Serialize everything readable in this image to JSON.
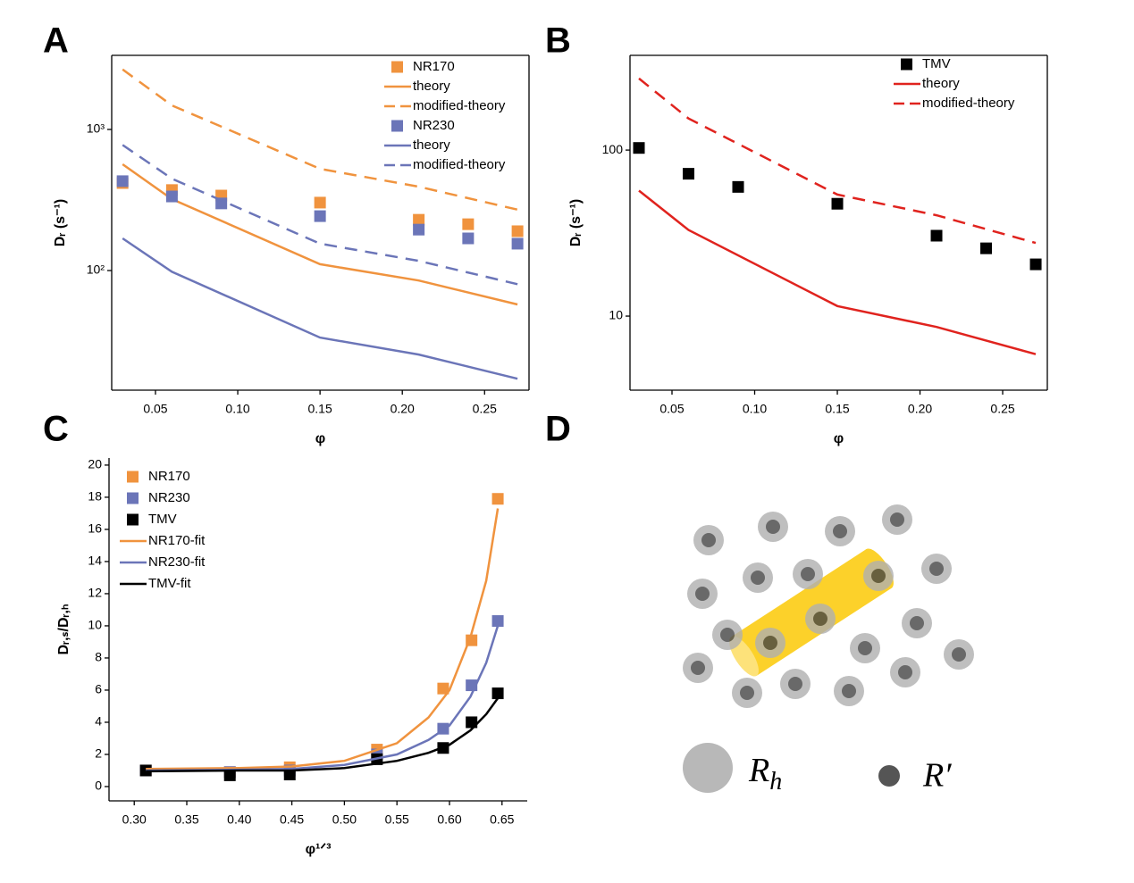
{
  "chart_data": [
    {
      "panel": "A",
      "type": "line",
      "xlabel": "φ",
      "ylabel": "Dᵣ (s⁻¹)",
      "log_y": true,
      "xlim": [
        0.0234,
        0.277
      ],
      "ylim": [
        14.2,
        3350
      ],
      "xticks": [
        0.05,
        {
          "value": 0.1,
          "label": "0.10"
        },
        0.15,
        {
          "value": 0.2,
          "label": "0.20"
        },
        0.25
      ],
      "yticks": [
        {
          "value": 100,
          "label": "10²"
        },
        {
          "value": 1000,
          "label": "10³"
        }
      ],
      "legend": "upper right",
      "series": [
        {
          "name": "NR170",
          "color": "#f0933e",
          "style": "marker",
          "x": [
            0.03,
            0.06,
            0.09,
            0.15,
            0.21,
            0.24,
            0.27
          ],
          "values": [
            417,
            372,
            340,
            303,
            229,
            213,
            190
          ]
        },
        {
          "name": "theory",
          "color": "#f0933e",
          "style": "solid",
          "x": [
            0.03,
            0.06,
            0.15,
            0.21,
            0.27
          ],
          "values": [
            566,
            321,
            111,
            85,
            57.5
          ]
        },
        {
          "name": "modified-theory",
          "color": "#f0933e",
          "style": "dashed",
          "x": [
            0.03,
            0.06,
            0.15,
            0.21,
            0.27
          ],
          "values": [
            2660,
            1480,
            526,
            393,
            270
          ]
        },
        {
          "name": "NR230",
          "color": "#6b75b8",
          "style": "marker",
          "x": [
            0.03,
            0.06,
            0.09,
            0.15,
            0.21,
            0.24,
            0.27
          ],
          "values": [
            430,
            335,
            299,
            243,
            195,
            169,
            155
          ]
        },
        {
          "name": "theory",
          "color": "#6b75b8",
          "style": "solid",
          "x": [
            0.03,
            0.06,
            0.15,
            0.21,
            0.27
          ],
          "values": [
            169,
            98,
            33.5,
            25.4,
            17.1
          ]
        },
        {
          "name": "modified-theory",
          "color": "#6b75b8",
          "style": "dashed",
          "x": [
            0.03,
            0.06,
            0.15,
            0.21,
            0.27
          ],
          "values": [
            776,
            448,
            155,
            117,
            80
          ]
        }
      ]
    },
    {
      "panel": "B",
      "type": "line",
      "xlabel": "φ",
      "ylabel": "Dᵣ (s⁻¹)",
      "log_y": true,
      "xlim": [
        0.0246,
        0.277
      ],
      "ylim": [
        3.58,
        372
      ],
      "xticks": [
        0.05,
        {
          "value": 0.1,
          "label": "0.10"
        },
        0.15,
        {
          "value": 0.2,
          "label": "0.20"
        },
        0.25
      ],
      "yticks": [
        10,
        100
      ],
      "legend": "upper right",
      "series": [
        {
          "name": "TMV",
          "color": "#000000",
          "style": "marker",
          "x": [
            0.03,
            0.06,
            0.09,
            0.15,
            0.21,
            0.24,
            0.27
          ],
          "values": [
            103,
            72,
            60,
            47.5,
            30.5,
            25.6,
            20.5
          ]
        },
        {
          "name": "theory",
          "color": "#e0231e",
          "style": "solid",
          "x": [
            0.03,
            0.06,
            0.15,
            0.21,
            0.27
          ],
          "values": [
            57,
            33,
            11.5,
            8.6,
            5.9
          ]
        },
        {
          "name": "modified-theory",
          "color": "#e0231e",
          "style": "dashed",
          "x": [
            0.03,
            0.06,
            0.15,
            0.21,
            0.27
          ],
          "values": [
            270,
            155,
            54,
            40.5,
            27.6
          ]
        }
      ]
    },
    {
      "panel": "C",
      "type": "line",
      "xlabel": "φ¹ᐟ³",
      "ylabel": "Dᵣ,ₛ/Dᵣ,ₕ",
      "log_y": false,
      "xlim": [
        0.276,
        0.674
      ],
      "ylim": [
        -0.89,
        20.44
      ],
      "xticks": [
        {
          "value": 0.3,
          "label": "0.30"
        },
        0.35,
        {
          "value": 0.4,
          "label": "0.40"
        },
        0.45,
        {
          "value": 0.5,
          "label": "0.50"
        },
        0.55,
        {
          "value": 0.6,
          "label": "0.60"
        },
        0.65
      ],
      "yticks": [
        0,
        2,
        4,
        6,
        8,
        10,
        12,
        14,
        16,
        18,
        20
      ],
      "legend": "upper left",
      "series": [
        {
          "name": "NR170",
          "color": "#f0933e",
          "style": "marker",
          "x": [
            0.311,
            0.391,
            0.448,
            0.531,
            0.594,
            0.621,
            0.646
          ],
          "values": [
            1.0,
            0.9,
            1.2,
            2.3,
            6.1,
            9.1,
            17.9
          ]
        },
        {
          "name": "NR230",
          "color": "#6b75b8",
          "style": "marker",
          "x": [
            0.311,
            0.391,
            0.448,
            0.531,
            0.594,
            0.621,
            0.646
          ],
          "values": [
            1.0,
            0.9,
            1.0,
            2.0,
            3.6,
            6.3,
            10.3
          ]
        },
        {
          "name": "TMV",
          "color": "#000000",
          "style": "marker",
          "x": [
            0.311,
            0.391,
            0.448,
            0.531,
            0.594,
            0.621,
            0.646
          ],
          "values": [
            1.0,
            0.7,
            0.75,
            1.7,
            2.4,
            4.0,
            5.8
          ]
        },
        {
          "name": "NR170-fit",
          "color": "#f0933e",
          "style": "solid",
          "x": [
            0.311,
            0.4,
            0.45,
            0.5,
            0.55,
            0.58,
            0.6,
            0.62,
            0.635,
            0.646
          ],
          "values": [
            1.1,
            1.15,
            1.25,
            1.6,
            2.7,
            4.3,
            6.0,
            9.3,
            12.8,
            17.3
          ]
        },
        {
          "name": "NR230-fit",
          "color": "#6b75b8",
          "style": "solid",
          "x": [
            0.311,
            0.4,
            0.45,
            0.5,
            0.55,
            0.58,
            0.6,
            0.62,
            0.635,
            0.646
          ],
          "values": [
            1.0,
            1.05,
            1.1,
            1.35,
            2.0,
            2.9,
            3.8,
            5.6,
            7.7,
            10.0
          ]
        },
        {
          "name": "TMV-fit",
          "color": "#000000",
          "style": "solid",
          "x": [
            0.311,
            0.4,
            0.45,
            0.5,
            0.55,
            0.58,
            0.6,
            0.62,
            0.635,
            0.646
          ],
          "values": [
            0.95,
            1.0,
            1.0,
            1.15,
            1.6,
            2.1,
            2.6,
            3.5,
            4.5,
            5.5
          ]
        }
      ]
    }
  ],
  "diagram": {
    "panel": "D",
    "labels": [
      {
        "symbol": "R",
        "subscript": "h"
      },
      {
        "symbol": "R′"
      }
    ]
  }
}
